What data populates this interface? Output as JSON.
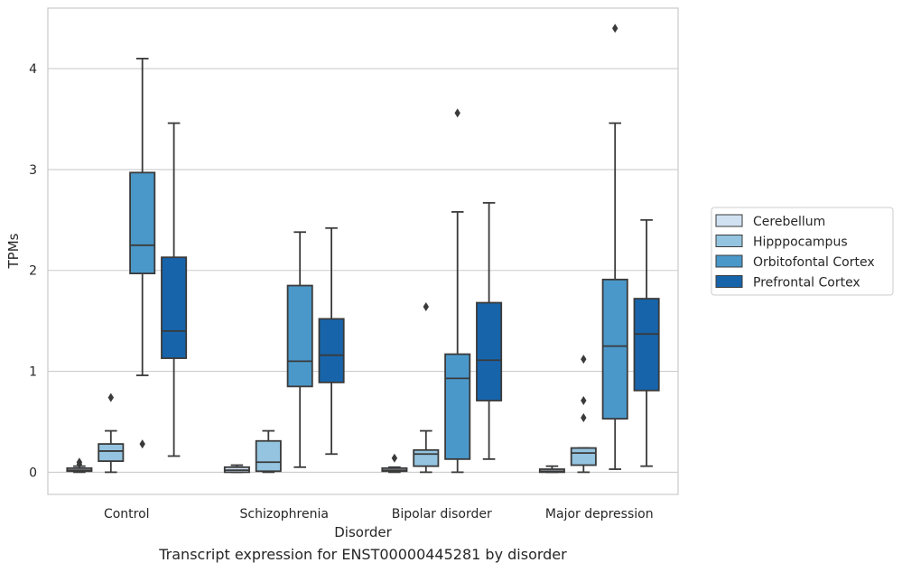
{
  "caption": "Transcript expression for ENST00000445281 by disorder",
  "chart_data": {
    "type": "boxplot",
    "xlabel": "Disorder",
    "ylabel": "TPMs",
    "ylim": [
      -0.22,
      4.6
    ],
    "yticks": [
      0,
      1,
      2,
      3,
      4
    ],
    "grid": "horizontal",
    "legend_position": "right",
    "categories": [
      "Control",
      "Schizophrenia",
      "Bipolar disorder",
      "Major depression"
    ],
    "series": [
      {
        "name": "Cerebellum",
        "color": "#d0e1f2",
        "boxes": [
          {
            "whislo": 0.0,
            "q1": 0.01,
            "med": 0.02,
            "q3": 0.04,
            "whishi": 0.06,
            "fliers": [
              0.08,
              0.1
            ]
          },
          {
            "whislo": 0.0,
            "q1": 0.0,
            "med": 0.02,
            "q3": 0.05,
            "whishi": 0.07,
            "fliers": []
          },
          {
            "whislo": 0.0,
            "q1": 0.01,
            "med": 0.02,
            "q3": 0.04,
            "whishi": 0.05,
            "fliers": [
              0.14
            ]
          },
          {
            "whislo": 0.0,
            "q1": 0.0,
            "med": 0.01,
            "q3": 0.03,
            "whishi": 0.06,
            "fliers": []
          }
        ]
      },
      {
        "name": "Hipppocampus",
        "color": "#94c4df",
        "boxes": [
          {
            "whislo": 0.0,
            "q1": 0.11,
            "med": 0.21,
            "q3": 0.28,
            "whishi": 0.41,
            "fliers": [
              0.74
            ]
          },
          {
            "whislo": 0.0,
            "q1": 0.01,
            "med": 0.1,
            "q3": 0.31,
            "whishi": 0.41,
            "fliers": []
          },
          {
            "whislo": 0.0,
            "q1": 0.06,
            "med": 0.18,
            "q3": 0.22,
            "whishi": 0.41,
            "fliers": [
              1.64
            ]
          },
          {
            "whislo": 0.0,
            "q1": 0.07,
            "med": 0.19,
            "q3": 0.24,
            "whishi": 0.24,
            "fliers": [
              0.54,
              0.71,
              1.12
            ]
          }
        ]
      },
      {
        "name": "Orbitofontal Cortex",
        "color": "#4a98c9",
        "boxes": [
          {
            "whislo": 0.96,
            "q1": 1.97,
            "med": 2.25,
            "q3": 2.97,
            "whishi": 4.1,
            "fliers": [
              0.28
            ]
          },
          {
            "whislo": 0.05,
            "q1": 0.85,
            "med": 1.1,
            "q3": 1.85,
            "whishi": 2.38,
            "fliers": []
          },
          {
            "whislo": 0.0,
            "q1": 0.13,
            "med": 0.93,
            "q3": 1.17,
            "whishi": 2.58,
            "fliers": [
              3.56
            ]
          },
          {
            "whislo": 0.03,
            "q1": 0.53,
            "med": 1.25,
            "q3": 1.91,
            "whishi": 3.46,
            "fliers": [
              4.4
            ]
          }
        ]
      },
      {
        "name": "Prefrontal Cortex",
        "color": "#1764ab",
        "boxes": [
          {
            "whislo": 0.16,
            "q1": 1.13,
            "med": 1.4,
            "q3": 2.13,
            "whishi": 3.46,
            "fliers": []
          },
          {
            "whislo": 0.18,
            "q1": 0.89,
            "med": 1.16,
            "q3": 1.52,
            "whishi": 2.42,
            "fliers": []
          },
          {
            "whislo": 0.13,
            "q1": 0.71,
            "med": 1.11,
            "q3": 1.68,
            "whishi": 2.67,
            "fliers": []
          },
          {
            "whislo": 0.06,
            "q1": 0.81,
            "med": 1.37,
            "q3": 1.72,
            "whishi": 2.5,
            "fliers": []
          }
        ]
      }
    ]
  }
}
